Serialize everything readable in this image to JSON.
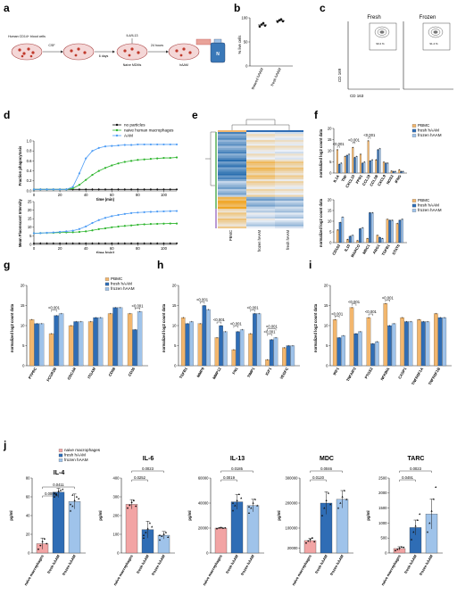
{
  "figure": {
    "panels": [
      "a",
      "b",
      "c",
      "d",
      "e",
      "f",
      "g",
      "h",
      "i",
      "j"
    ],
    "colors": {
      "pbmc": "#f2b66d",
      "fresh": "#2f6db5",
      "frozen": "#9fc3ea",
      "naive": "#f2a4a4",
      "green": "#2db52d",
      "blue_line": "#4f9df5",
      "heat_blue": "#2a6fb0",
      "heat_orange": "#f0a422",
      "cluster_green": "#7fc27f",
      "cluster_purple": "#b99ad6"
    }
  },
  "panel_a": {
    "steps": [
      "Human CD14+ blood cells",
      "CSF",
      "6 days",
      "IL4/IL13",
      "Naive MDMs",
      "24 hours",
      "hAAM"
    ]
  },
  "panel_b": {
    "chart_data": {
      "type": "scatter",
      "ylabel": "% live cells",
      "categories": [
        "thawed hAAM",
        "fresh hAAM"
      ],
      "ylim": [
        0,
        100
      ],
      "yticks": [
        0,
        50,
        100
      ],
      "points": [
        [
          82,
          86,
          89,
          84
        ],
        [
          92,
          95,
          97,
          93
        ]
      ]
    }
  },
  "panel_c": {
    "titles": [
      "Fresh",
      "Frozen"
    ],
    "ylabel": "CD 169",
    "xlabel": "CD 163",
    "gate_values": [
      "90.2 %",
      "91.4 %"
    ]
  },
  "panel_d": {
    "legend": [
      "no particles",
      "naive human macrophages",
      "AAM"
    ],
    "chart_data": [
      {
        "type": "line",
        "ylabel": "Fraction phagocytosis",
        "xlabel": "time (min)",
        "xlim": [
          0,
          110
        ],
        "ylim": [
          0,
          1.0
        ],
        "xticks": [
          0,
          20,
          40,
          60,
          80,
          100
        ],
        "yticks": [
          0.0,
          0.2,
          0.4,
          0.6,
          0.8,
          1.0
        ],
        "x": [
          0,
          5,
          10,
          15,
          20,
          25,
          30,
          35,
          40,
          45,
          50,
          55,
          60,
          65,
          70,
          75,
          80,
          85,
          90,
          95,
          100,
          105,
          110
        ],
        "series": [
          {
            "name": "no particles",
            "values": [
              0.03,
              0.03,
              0.03,
              0.03,
              0.03,
              0.03,
              0.03,
              0.03,
              0.03,
              0.03,
              0.03,
              0.03,
              0.03,
              0.03,
              0.03,
              0.03,
              0.03,
              0.03,
              0.03,
              0.03,
              0.03,
              0.03,
              0.03
            ]
          },
          {
            "name": "naive human macrophages",
            "values": [
              0.03,
              0.03,
              0.03,
              0.03,
              0.03,
              0.03,
              0.05,
              0.12,
              0.22,
              0.32,
              0.4,
              0.46,
              0.51,
              0.55,
              0.58,
              0.6,
              0.62,
              0.63,
              0.64,
              0.65,
              0.66,
              0.66,
              0.67
            ]
          },
          {
            "name": "AAM",
            "values": [
              0.03,
              0.03,
              0.03,
              0.03,
              0.03,
              0.03,
              0.08,
              0.35,
              0.65,
              0.8,
              0.86,
              0.89,
              0.9,
              0.91,
              0.92,
              0.92,
              0.93,
              0.93,
              0.93,
              0.93,
              0.93,
              0.93,
              0.93
            ]
          }
        ]
      },
      {
        "type": "line",
        "ylabel": "Mean Fluorescent Intensity",
        "xlabel": "time (min)",
        "xlim": [
          0,
          110
        ],
        "ylim": [
          0,
          25
        ],
        "xticks": [
          0,
          20,
          40,
          60,
          80,
          100
        ],
        "yticks": [
          0,
          5,
          10,
          15,
          20,
          25
        ],
        "x": [
          0,
          5,
          10,
          15,
          20,
          25,
          30,
          35,
          40,
          45,
          50,
          55,
          60,
          65,
          70,
          75,
          80,
          85,
          90,
          95,
          100,
          105,
          110
        ],
        "series": [
          {
            "name": "no particles",
            "values": [
              0.6,
              0.6,
              0.6,
              0.6,
              0.6,
              0.6,
              0.6,
              0.6,
              0.6,
              0.6,
              0.6,
              0.6,
              0.6,
              0.6,
              0.6,
              0.6,
              0.6,
              0.6,
              0.6,
              0.6,
              0.6,
              0.6,
              0.6
            ]
          },
          {
            "name": "naive human macrophages",
            "values": [
              6.5,
              6.6,
              6.7,
              6.8,
              6.9,
              7.0,
              7.1,
              7.3,
              7.6,
              8.2,
              8.9,
              9.4,
              10.0,
              10.4,
              10.8,
              11.1,
              11.5,
              11.7,
              11.9,
              12.0,
              12.1,
              12.2,
              12.2
            ]
          },
          {
            "name": "AAM",
            "values": [
              6.5,
              6.6,
              6.8,
              7.0,
              7.3,
              7.6,
              8.0,
              9.0,
              10.5,
              12.5,
              14.2,
              15.5,
              16.5,
              17.2,
              17.8,
              18.3,
              18.6,
              18.8,
              19.0,
              19.2,
              19.3,
              19.4,
              19.5
            ]
          }
        ]
      }
    ]
  },
  "panel_e": {
    "columns": [
      "PBMC",
      "frozen hAAM",
      "fresh hAAM"
    ],
    "chart_data": {
      "type": "heatmap",
      "columns": [
        "PBMC",
        "frozen hAAM",
        "fresh hAAM"
      ],
      "row_blocks": [
        {
          "rows": 14,
          "values": [
            0.2,
            0.6,
            0.55
          ]
        },
        {
          "rows": 10,
          "values": [
            0.1,
            0.8,
            0.7
          ]
        },
        {
          "rows": 9,
          "values": [
            0.3,
            0.65,
            0.6
          ]
        },
        {
          "rows": 6,
          "values": [
            0.95,
            0.3,
            0.35
          ]
        },
        {
          "rows": 10,
          "values": [
            0.7,
            0.45,
            0.4
          ]
        }
      ]
    }
  },
  "bar_legend": [
    "PBMC",
    "fresh hAAM",
    "frozen hAAM"
  ],
  "naive_legend": [
    "naive macrophages",
    "fresh hAAM",
    "frozen hAAM"
  ],
  "ylabel_norm": "normalized log2 count data",
  "panel_f": {
    "chart_data": [
      {
        "type": "bar",
        "ylim": [
          0,
          20
        ],
        "yticks": [
          0,
          5,
          10,
          15,
          20
        ],
        "categories": [
          "IL1A",
          "TNF",
          "CXCL10",
          "FPR1",
          "CCL19",
          "CCL1B",
          "CXCL9",
          "NOS2",
          "IFNG"
        ],
        "series": [
          {
            "name": "PBMC",
            "values": [
              10.5,
              7.5,
              11.5,
              8.5,
              14.5,
              6.0,
              5.0,
              1.0,
              1.5
            ]
          },
          {
            "name": "fresh hAAM",
            "values": [
              4.0,
              8.0,
              7.0,
              4.5,
              5.5,
              10.5,
              4.5,
              0.8,
              0.8
            ]
          },
          {
            "name": "frozen hAAM",
            "values": [
              4.5,
              8.5,
              7.5,
              5.0,
              6.0,
              11.0,
              4.5,
              0.8,
              0.8
            ]
          }
        ],
        "annotations": [
          "<0.001",
          "<0.001",
          "<0.001"
        ]
      },
      {
        "type": "bar",
        "ylim": [
          0,
          20
        ],
        "yticks": [
          0,
          5,
          10,
          15,
          20
        ],
        "categories": [
          "CD163",
          "IL10",
          "MARCO",
          "MRC1",
          "ARG1",
          "TGFB1",
          "STAT6"
        ],
        "series": [
          {
            "name": "PBMC",
            "values": [
              6.0,
              1.5,
              1.0,
              2.0,
              3.5,
              11.0,
              9.0
            ]
          },
          {
            "name": "fresh hAAM",
            "values": [
              9.5,
              3.0,
              6.5,
              14.0,
              2.5,
              10.5,
              10.5
            ]
          },
          {
            "name": "frozen hAAM",
            "values": [
              12.0,
              3.5,
              7.0,
              14.0,
              2.0,
              10.5,
              11.0
            ]
          }
        ]
      }
    ]
  },
  "panel_g": {
    "chart_data": {
      "type": "bar",
      "ylim": [
        0,
        20
      ],
      "yticks": [
        0,
        5,
        10,
        15,
        20
      ],
      "categories": [
        "PTPRC",
        "FCGR2B",
        "OSCAR",
        "ITGAM",
        "CD68",
        "CD36"
      ],
      "series": [
        {
          "name": "PBMC",
          "values": [
            11.5,
            8.0,
            10.0,
            11.0,
            13.0,
            13.0
          ]
        },
        {
          "name": "fresh hAAM",
          "values": [
            10.5,
            12.5,
            11.0,
            12.0,
            14.5,
            9.0
          ]
        },
        {
          "name": "frozen hAAM",
          "values": [
            10.5,
            13.0,
            11.0,
            12.0,
            14.5,
            13.5
          ]
        }
      ],
      "annotations": [
        "<0.001",
        "<0.001"
      ]
    }
  },
  "panel_h": {
    "chart_data": {
      "type": "bar",
      "ylim": [
        0,
        20
      ],
      "yticks": [
        0,
        5,
        10,
        15,
        20
      ],
      "categories": [
        "TGFB1",
        "MMP9",
        "MMP12",
        "FN1",
        "TIMP1",
        "IGF1",
        "VEGFC"
      ],
      "series": [
        {
          "name": "PBMC",
          "values": [
            12.0,
            10.5,
            7.0,
            4.0,
            8.0,
            1.5,
            4.5
          ]
        },
        {
          "name": "fresh hAAM",
          "values": [
            10.5,
            15.0,
            10.0,
            8.5,
            13.0,
            6.5,
            5.0
          ]
        },
        {
          "name": "frozen hAAM",
          "values": [
            11.0,
            14.0,
            8.5,
            9.0,
            13.0,
            7.0,
            5.0
          ]
        }
      ],
      "annotations": [
        "<0.001",
        "<0.001",
        "<0.001",
        "<0.001",
        "<0.001",
        "<0.001"
      ]
    }
  },
  "panel_i": {
    "chart_data": {
      "type": "bar",
      "ylim": [
        0,
        20
      ],
      "yticks": [
        0,
        5,
        10,
        15,
        20
      ],
      "categories": [
        "IRF1",
        "TNFAIP3",
        "PTGS2",
        "NFKBIA",
        "CASP1",
        "TNFRSF1A",
        "TNFRSF1B"
      ],
      "series": [
        {
          "name": "PBMC",
          "values": [
            11.5,
            14.5,
            12.0,
            15.5,
            12.0,
            11.5,
            13.0
          ]
        },
        {
          "name": "fresh hAAM",
          "values": [
            7.0,
            8.0,
            5.5,
            10.0,
            11.0,
            11.0,
            12.0
          ]
        },
        {
          "name": "frozen hAAM",
          "values": [
            7.5,
            8.5,
            6.0,
            10.5,
            11.0,
            11.0,
            12.0
          ]
        }
      ],
      "annotations": [
        "<0.001",
        "<0.001",
        "<0.001",
        "<0.001"
      ]
    }
  },
  "panel_j": {
    "chart_data": [
      {
        "type": "bar",
        "title": "IL-4",
        "ylabel": "pg/ml",
        "ylim": [
          0,
          80
        ],
        "yticks": [
          0,
          20,
          40,
          60,
          80
        ],
        "categories": [
          "naive macrophages",
          "fresh hAAM",
          "frozen hAAM"
        ],
        "values": [
          10,
          65,
          55
        ],
        "errors": [
          6,
          4,
          8
        ],
        "points": [
          [
            4,
            8,
            12,
            15,
            10
          ],
          [
            60,
            63,
            66,
            67,
            68,
            64,
            62
          ],
          [
            45,
            50,
            56,
            60,
            58,
            52,
            62
          ]
        ],
        "annotations": [
          {
            "from": 0,
            "to": 2,
            "text": "0.0411"
          },
          {
            "from": 0,
            "to": 1,
            "text": "0.0005"
          }
        ]
      },
      {
        "type": "bar",
        "title": "IL-6",
        "ylabel": "pg/ml",
        "ylim": [
          0,
          400
        ],
        "yticks": [
          0,
          100,
          200,
          300,
          400
        ],
        "categories": [
          "naive macrophages",
          "fresh hAAM",
          "frozen hAAM"
        ],
        "values": [
          260,
          125,
          95
        ],
        "errors": [
          25,
          45,
          20
        ],
        "points": [
          [
            240,
            255,
            270,
            280,
            250
          ],
          [
            80,
            110,
            130,
            160,
            140,
            95
          ],
          [
            70,
            90,
            100,
            110,
            85,
            95
          ]
        ],
        "annotations": [
          {
            "from": 0,
            "to": 2,
            "text": "0.0023"
          },
          {
            "from": 0,
            "to": 1,
            "text": "0.0252"
          }
        ]
      },
      {
        "type": "bar",
        "title": "IL-13",
        "ylabel": "pg/ml",
        "ylim": [
          0,
          60000
        ],
        "yticks": [
          0,
          20000,
          40000,
          60000
        ],
        "categories": [
          "naive macrophages",
          "fresh hAAM",
          "frozen hAAM"
        ],
        "values": [
          20000,
          41000,
          38000
        ],
        "errors": [
          600,
          6000,
          5000
        ],
        "points": [
          [
            19500,
            20000,
            20300,
            19800,
            20100
          ],
          [
            34000,
            38000,
            42000,
            47000,
            44000,
            40000
          ],
          [
            32000,
            36000,
            40000,
            43000,
            38000,
            37000
          ]
        ],
        "annotations": [
          {
            "from": 0,
            "to": 2,
            "text": "0.0185"
          },
          {
            "from": 0,
            "to": 1,
            "text": "0.0019"
          }
        ]
      },
      {
        "type": "bar",
        "title": "MDC",
        "ylabel": "pg/ml",
        "ylim": [
          0,
          300000
        ],
        "yticks": [
          20000,
          100000,
          200000,
          300000
        ],
        "ytick_labels": [
          "20000",
          "100000",
          "200000",
          "300000"
        ],
        "categories": [
          "naive macrophages",
          "fresh hAAM",
          "frozen hAAM"
        ],
        "values": [
          50000,
          200000,
          215000
        ],
        "errors": [
          8000,
          45000,
          35000
        ],
        "points": [
          [
            40000,
            48000,
            55000,
            60000,
            45000
          ],
          [
            150000,
            180000,
            210000,
            240000,
            195000
          ],
          [
            180000,
            200000,
            225000,
            250000,
            215000
          ]
        ],
        "annotations": [
          {
            "from": 0,
            "to": 2,
            "text": "0.0046"
          },
          {
            "from": 0,
            "to": 1,
            "text": "0.0120"
          }
        ]
      },
      {
        "type": "bar",
        "title": "TARC",
        "ylabel": "pg/ml",
        "ylim": [
          0,
          2500
        ],
        "yticks": [
          0,
          500,
          1000,
          1500,
          2000,
          2500
        ],
        "categories": [
          "naive macrophages",
          "fresh hAAM",
          "frozen hAAM"
        ],
        "values": [
          150,
          850,
          1300
        ],
        "errors": [
          60,
          250,
          500
        ],
        "points": [
          [
            80,
            120,
            160,
            200,
            190
          ],
          [
            450,
            700,
            900,
            1100,
            1300
          ],
          [
            700,
            1000,
            1400,
            1800,
            2200
          ]
        ],
        "annotations": [
          {
            "from": 0,
            "to": 2,
            "text": "0.0023"
          },
          {
            "from": 0,
            "to": 1,
            "text": "0.0491"
          }
        ]
      }
    ]
  }
}
